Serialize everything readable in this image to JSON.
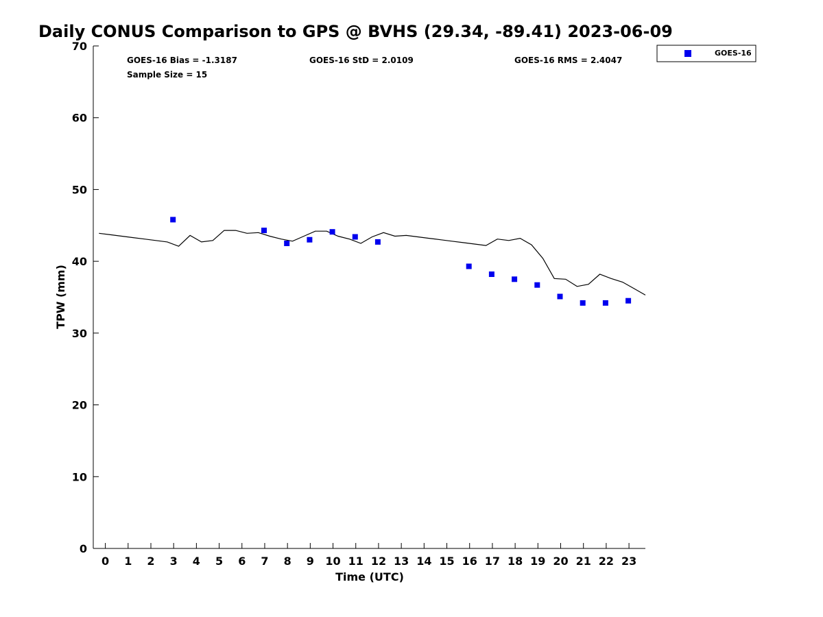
{
  "colors": {
    "goes": "#0000ee",
    "gps_line": "#000000",
    "axis": "#000000"
  },
  "legend_icon": "blue-square-marker",
  "chart_data": {
    "type": "scatter",
    "title": "Daily CONUS Comparison to GPS @ BVHS (29.34, -89.41) 2023-06-09",
    "xlabel": "Time (UTC)",
    "ylabel": "TPW (mm)",
    "xlim": [
      -0.5,
      23.75
    ],
    "ylim": [
      0,
      70
    ],
    "x_ticks": [
      0,
      1,
      2,
      3,
      4,
      5,
      6,
      7,
      8,
      9,
      10,
      11,
      12,
      13,
      14,
      15,
      16,
      17,
      18,
      19,
      20,
      21,
      22,
      23
    ],
    "y_ticks": [
      0,
      10,
      20,
      30,
      40,
      50,
      60,
      70
    ],
    "legend_position": "top-right, outside plot",
    "stats": {
      "bias": "GOES-16 Bias = -1.3187",
      "std": "GOES-16 StD = 2.0109",
      "rms": "GOES-16 RMS = 2.4047",
      "sample": "Sample Size = 15"
    },
    "series": [
      {
        "name": "GOES-16",
        "kind": "scatter",
        "x": [
          3,
          7,
          8,
          9,
          10,
          11,
          12,
          16,
          17,
          18,
          19,
          20,
          21,
          22,
          23
        ],
        "y": [
          45.8,
          44.3,
          42.5,
          43.0,
          44.1,
          43.4,
          42.7,
          39.3,
          38.2,
          37.5,
          36.7,
          35.1,
          34.2,
          34.2,
          34.5
        ]
      },
      {
        "kind": "line",
        "x": [
          -0.25,
          0.25,
          0.75,
          1.25,
          1.75,
          2.25,
          2.75,
          3.25,
          3.75,
          4.25,
          4.75,
          5.25,
          5.75,
          6.25,
          6.75,
          7.25,
          7.75,
          8.25,
          8.75,
          9.25,
          9.75,
          10.25,
          10.75,
          11.25,
          11.75,
          12.25,
          12.75,
          13.25,
          13.75,
          14.25,
          14.75,
          15.25,
          15.75,
          16.25,
          16.75,
          17.25,
          17.75,
          18.25,
          18.75,
          19.25,
          19.75,
          20.25,
          20.75,
          21.25,
          21.75,
          22.25,
          22.75,
          23.25,
          23.75
        ],
        "y": [
          43.9,
          43.7,
          43.5,
          43.3,
          43.1,
          42.9,
          42.7,
          42.1,
          43.6,
          42.7,
          42.9,
          44.3,
          44.3,
          43.9,
          44.0,
          43.5,
          43.1,
          42.8,
          43.5,
          44.2,
          44.2,
          43.5,
          43.1,
          42.5,
          43.4,
          44.0,
          43.5,
          43.6,
          43.4,
          43.2,
          43.0,
          42.8,
          42.6,
          42.4,
          42.2,
          43.1,
          42.9,
          43.2,
          42.3,
          40.4,
          37.6,
          37.5,
          36.5,
          36.8,
          38.2,
          37.6,
          37.1,
          36.2,
          35.3
        ]
      }
    ]
  }
}
